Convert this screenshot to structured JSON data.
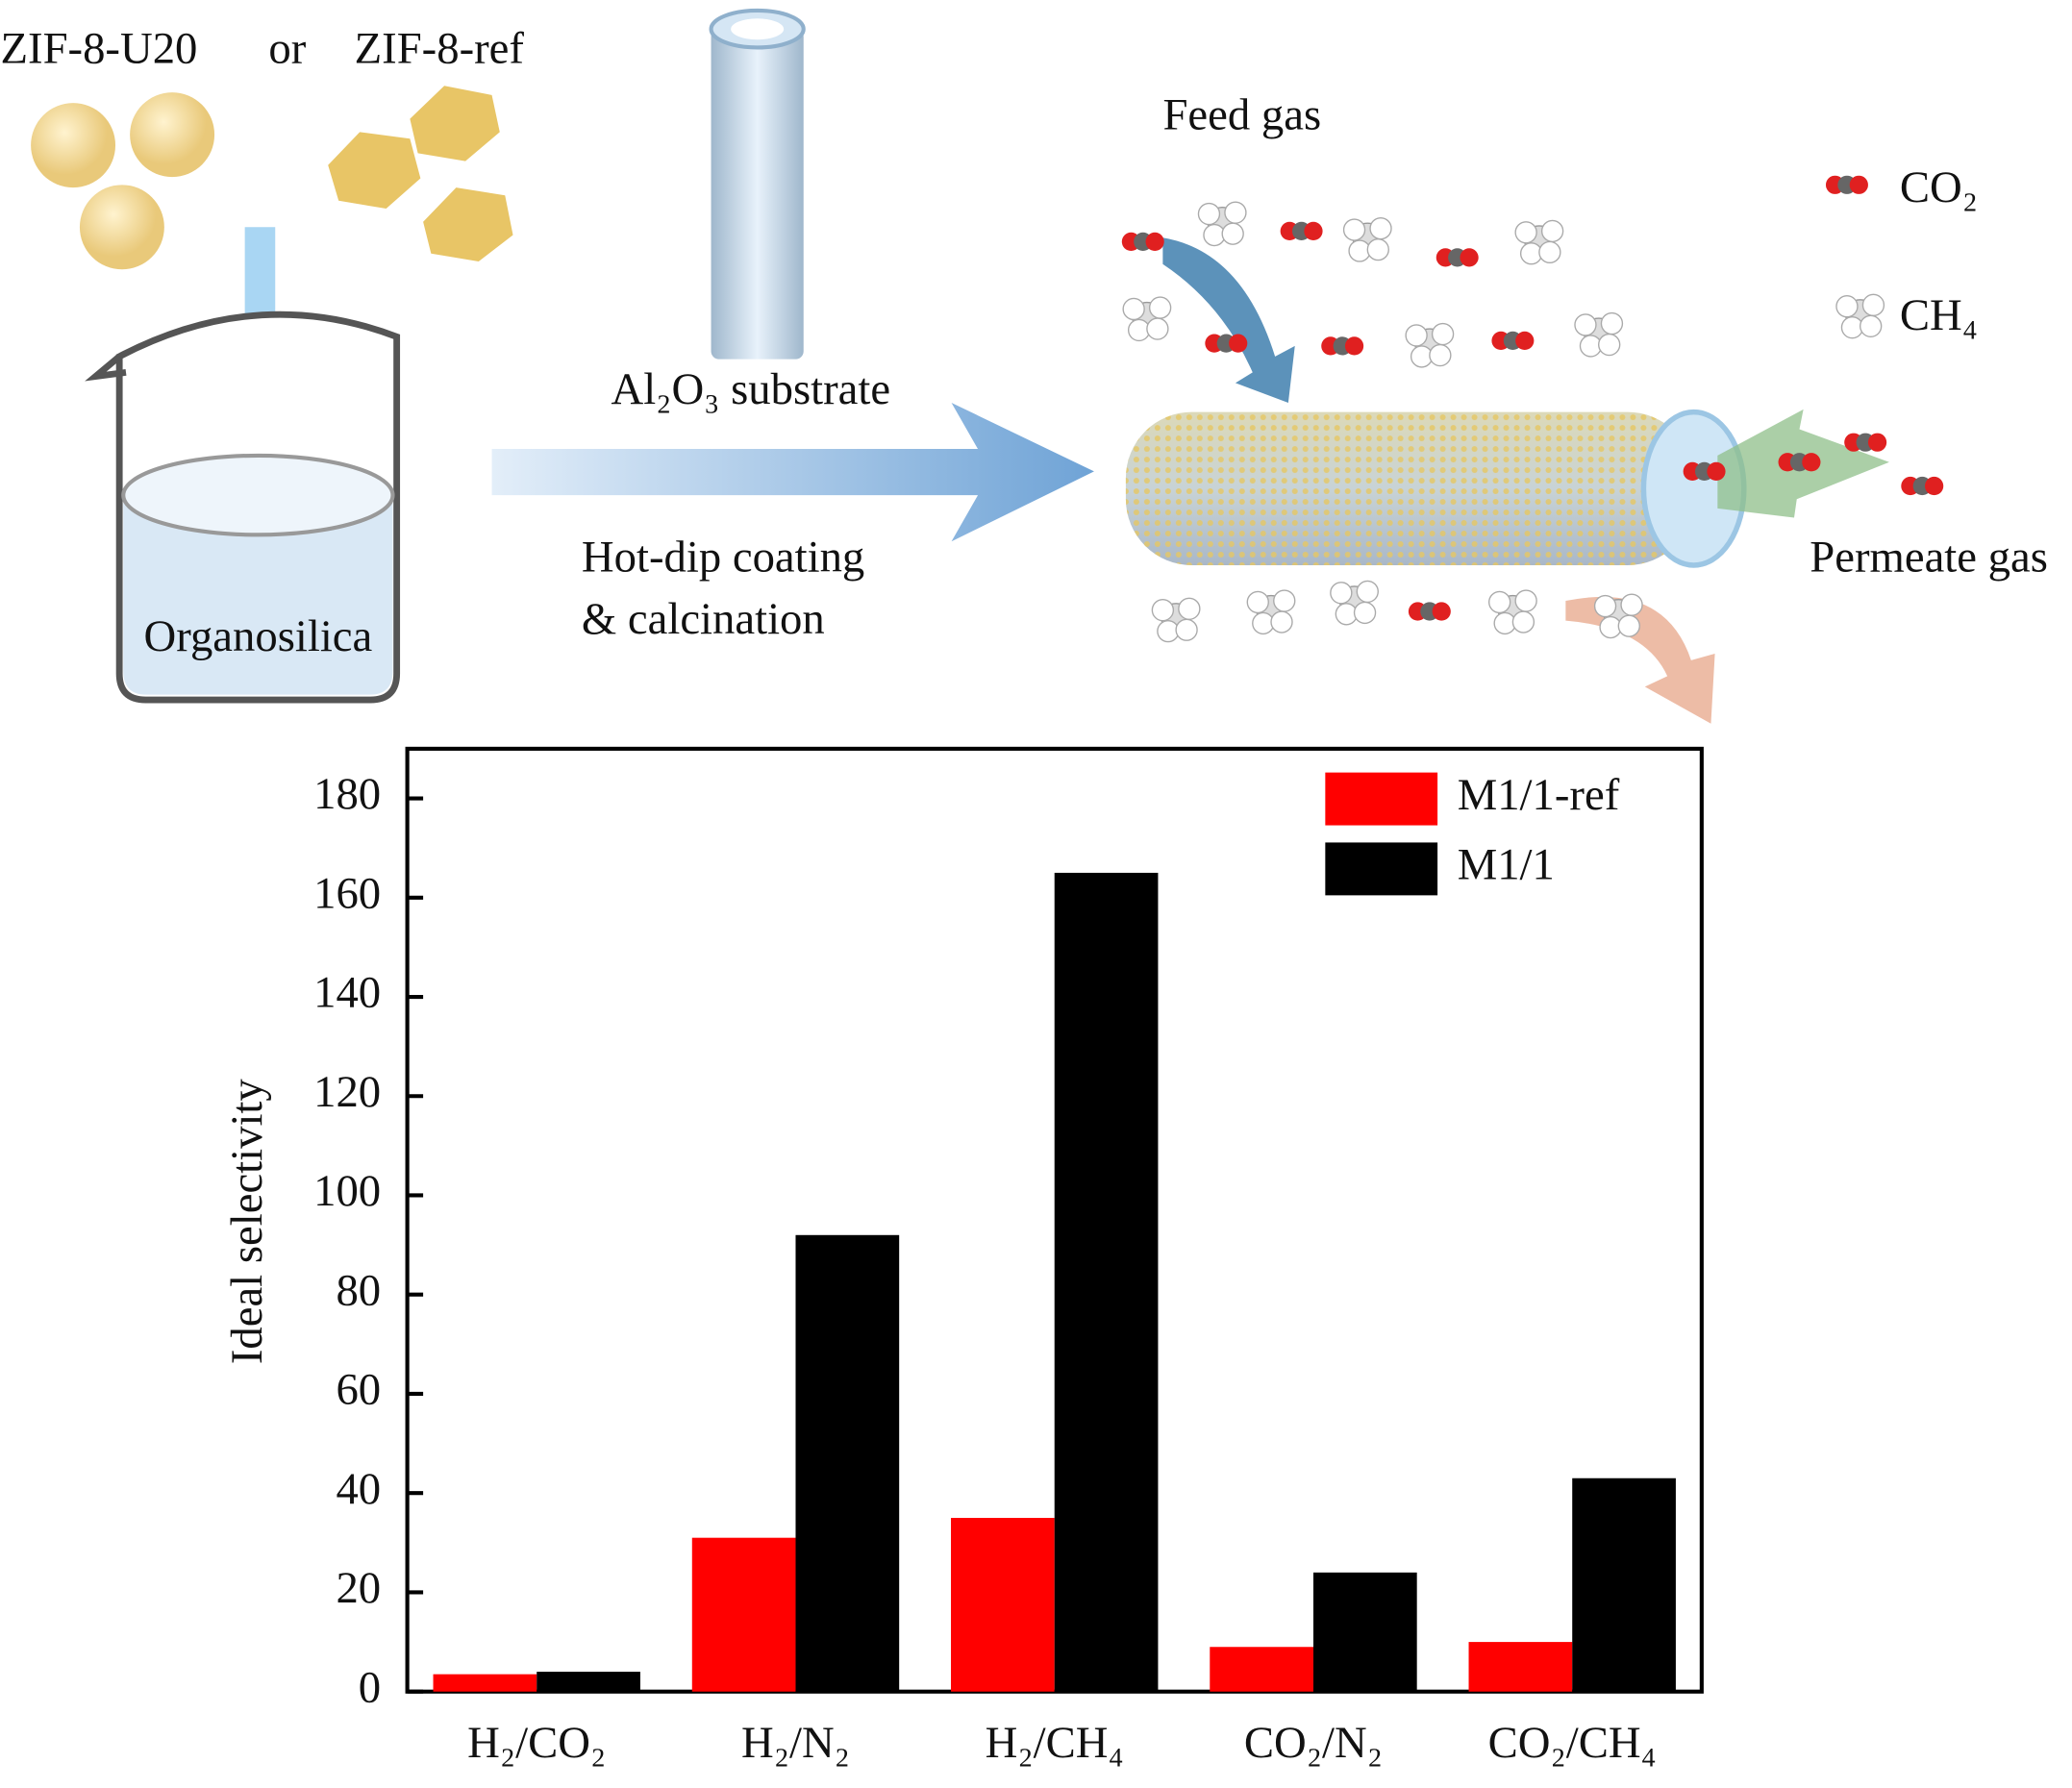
{
  "diagram": {
    "precursor_a": "ZIF-8-U20",
    "or": "or",
    "precursor_b": "ZIF-8-ref",
    "solution": "Organosilica",
    "substrate": "Al₂O₃ substrate",
    "step_1": "Hot-dip coating",
    "step_2": "& calcination",
    "feed": "Feed gas",
    "permeate": "Permeate gas",
    "gas_1": "CO₂",
    "gas_2": "CH₄"
  },
  "chart_data": {
    "type": "bar",
    "ylabel": "Ideal selectivity",
    "categories": [
      "H₂/CO₂",
      "H₂/N₂",
      "H₂/CH₄",
      "CO₂/N₂",
      "CO₂/CH₄"
    ],
    "series": [
      {
        "name": "M1/1-ref",
        "color": "#ff0000",
        "values": [
          3.5,
          31,
          35,
          9,
          10
        ]
      },
      {
        "name": "M1/1",
        "color": "#000000",
        "values": [
          4,
          92,
          165,
          24,
          43
        ]
      }
    ],
    "ylim": [
      0,
      190
    ],
    "yticks": [
      0,
      20,
      40,
      60,
      80,
      100,
      120,
      140,
      160,
      180
    ],
    "legend": "upper right"
  }
}
